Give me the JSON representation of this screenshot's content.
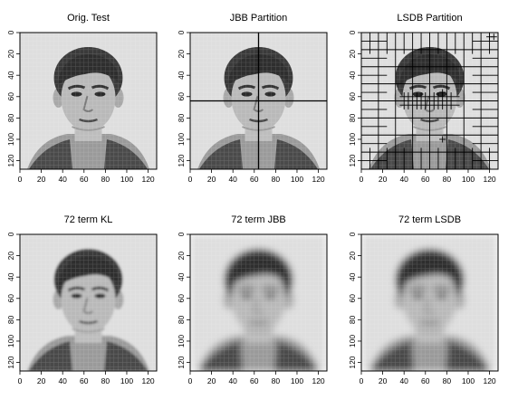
{
  "figure": {
    "panels": [
      {
        "title": "Orig. Test",
        "partition": "none",
        "detail": "sharp"
      },
      {
        "title": "JBB Partition",
        "partition": "jbb",
        "detail": "sharp"
      },
      {
        "title": "LSDB Partition",
        "partition": "lsdb",
        "detail": "sharp"
      },
      {
        "title": "72 term KL",
        "partition": "none",
        "detail": "medium"
      },
      {
        "title": "72 term JBB",
        "partition": "none",
        "detail": "blurred"
      },
      {
        "title": "72 term LSDB",
        "partition": "none",
        "detail": "blurred"
      }
    ],
    "x_ticks": [
      "0",
      "20",
      "40",
      "60",
      "80",
      "100",
      "120"
    ],
    "y_ticks": [
      "0",
      "20",
      "40",
      "60",
      "80",
      "100",
      "120"
    ],
    "axis_range": [
      0,
      128
    ]
  }
}
